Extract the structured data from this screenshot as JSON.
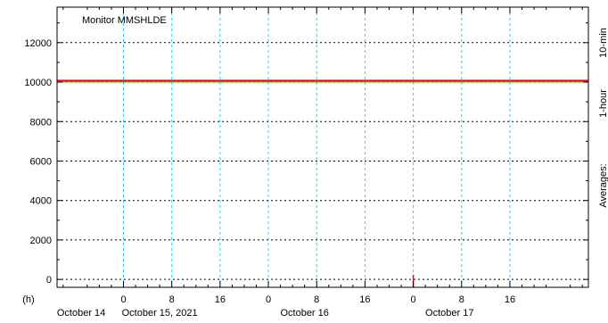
{
  "chart_data": {
    "type": "line",
    "title": "Monitor MMSHLDE",
    "y_ticks": [
      0,
      2000,
      4000,
      6000,
      8000,
      10000,
      12000
    ],
    "ylim": [
      -400,
      13800
    ],
    "hour_unit_label": "(h)",
    "x_range_hours": [
      -11,
      77
    ],
    "x_ticks": [
      {
        "h": 0,
        "label": "0"
      },
      {
        "h": 8,
        "label": "8"
      },
      {
        "h": 16,
        "label": "16"
      },
      {
        "h": 24,
        "label": "0"
      },
      {
        "h": 32,
        "label": "8"
      },
      {
        "h": 40,
        "label": "16"
      },
      {
        "h": 48,
        "label": "0"
      },
      {
        "h": 56,
        "label": "8"
      },
      {
        "h": 64,
        "label": "16"
      }
    ],
    "date_labels": [
      {
        "h": -7,
        "label": "October 14"
      },
      {
        "h": 6,
        "label": "October 15, 2021"
      },
      {
        "h": 30,
        "label": "October 16"
      },
      {
        "h": 54,
        "label": "October 17"
      }
    ],
    "series": [
      {
        "name": "10-min",
        "color": "#00cc00",
        "x": [
          -11,
          77
        ],
        "y": [
          10050,
          10050
        ]
      },
      {
        "name": "1-hour",
        "color": "#ff0000",
        "x": [
          -11,
          77
        ],
        "y": [
          10080,
          10080
        ]
      }
    ],
    "legend": {
      "title": "Averages:",
      "placement": "right",
      "labels": [
        "10-min",
        "1-hour"
      ]
    },
    "current_marker_h": 48,
    "grid": true
  }
}
